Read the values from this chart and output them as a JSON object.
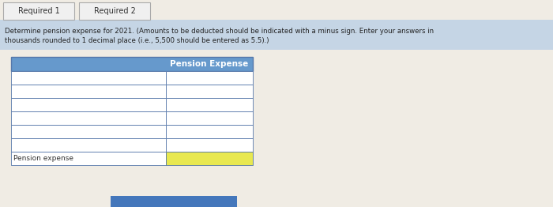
{
  "tab1_label": "Required 1",
  "tab2_label": "Required 2",
  "instruction_line1": "Determine pension expense for 2021. (Amounts to be deducted should be indicated with a minus sign. Enter your answers in",
  "instruction_line2": "thousands rounded to 1 decimal place (i.e., 5,500 should be entered as 5.5).)",
  "table_header": "Pension Expense",
  "row_label": "Pension expense",
  "num_data_rows": 6,
  "tab_border": "#aaaaaa",
  "tab_active_bg": "#f0f0f0",
  "tab_text_color": "#333333",
  "instruction_bg": "#c5d5e5",
  "instruction_text_color": "#222222",
  "table_header_bg": "#6699cc",
  "table_header_text_color": "#ffffff",
  "table_border_color": "#5577aa",
  "row_bg_white": "#ffffff",
  "last_row_yellow": "#e8e850",
  "bottom_bar_bg": "#4477bb",
  "page_bg": "#e0e5e8",
  "content_bg": "#f0ece4"
}
